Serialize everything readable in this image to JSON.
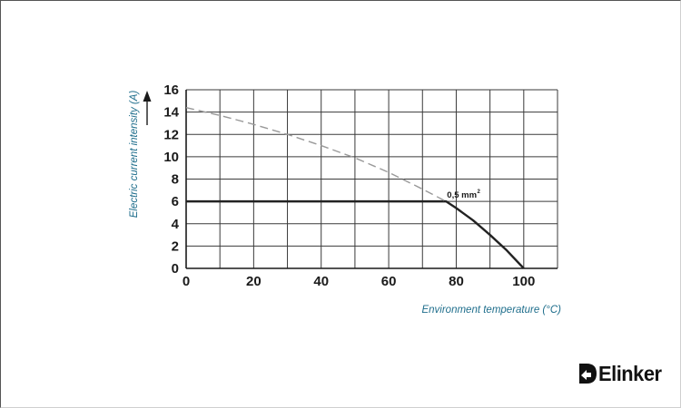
{
  "chart_data": {
    "type": "line",
    "xlabel": "Environment temperature  (°C)",
    "ylabel": "Electric current intensity (A)",
    "xlim": [
      0,
      110
    ],
    "ylim": [
      0,
      16
    ],
    "x_ticks": [
      0,
      20,
      40,
      60,
      80,
      100
    ],
    "y_ticks": [
      0,
      2,
      4,
      6,
      8,
      10,
      12,
      14,
      16
    ],
    "grid": true,
    "series": [
      {
        "name": "0,5 mm²",
        "style": "solid",
        "color": "#222222",
        "x": [
          0,
          10,
          20,
          30,
          40,
          50,
          60,
          70,
          77,
          80,
          85,
          90,
          95,
          100
        ],
        "y": [
          6,
          6,
          6,
          6,
          6,
          6,
          6,
          6,
          6,
          5.4,
          4.3,
          3.0,
          1.6,
          0
        ]
      },
      {
        "style": "dashed",
        "color": "#999999",
        "x": [
          0,
          10,
          20,
          30,
          40,
          50,
          60,
          70,
          77
        ],
        "y": [
          14.4,
          13.7,
          12.9,
          12.0,
          11.0,
          9.9,
          8.6,
          7.1,
          6.0
        ]
      }
    ],
    "annotations": [
      {
        "text": "0,5 mm",
        "sup": "2",
        "x": 77,
        "y": 6
      }
    ]
  },
  "brand": {
    "name": "Elinker"
  }
}
